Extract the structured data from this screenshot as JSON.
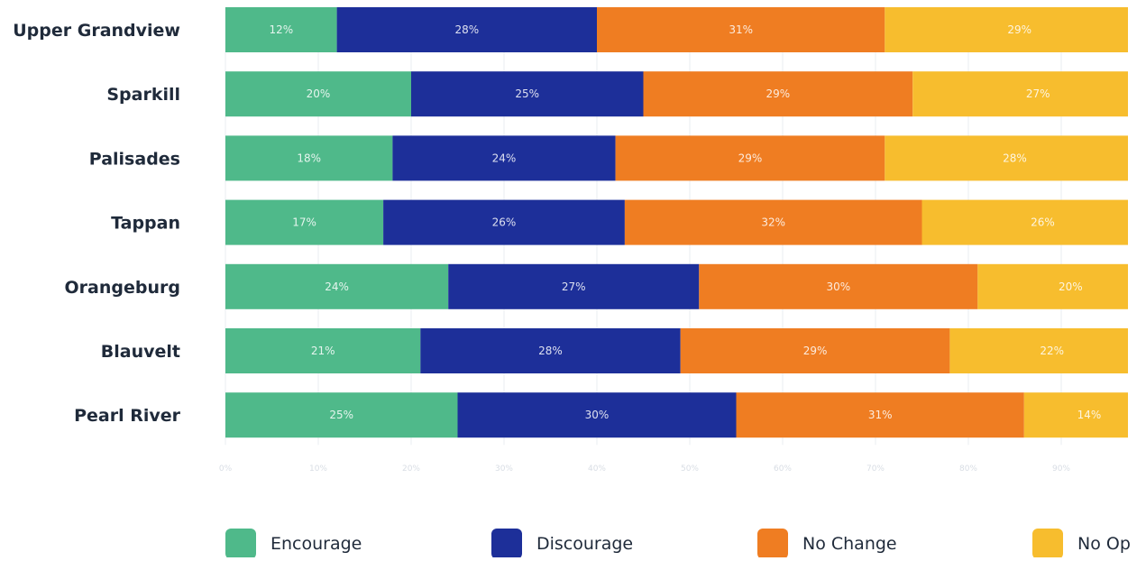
{
  "chart_data": {
    "type": "bar",
    "orientation": "horizontal",
    "stacked": true,
    "title": "",
    "xlabel": "",
    "ylabel": "",
    "xlim": [
      0,
      100
    ],
    "categories": [
      "Upper Grandview",
      "Sparkill",
      "Palisades",
      "Tappan",
      "Orangeburg",
      "Blauvelt",
      "Pearl River"
    ],
    "series": [
      {
        "name": "Encourage",
        "color": "#4fb98a",
        "values": [
          12,
          20,
          18,
          17,
          24,
          21,
          25
        ]
      },
      {
        "name": "Discourage",
        "color": "#1d2f99",
        "values": [
          28,
          25,
          24,
          26,
          27,
          28,
          30
        ]
      },
      {
        "name": "No Change",
        "color": "#ef7d22",
        "values": [
          31,
          29,
          29,
          32,
          30,
          29,
          31
        ]
      },
      {
        "name": "No Opinion",
        "color": "#f7bd2e",
        "values": [
          29,
          27,
          28,
          26,
          20,
          22,
          14
        ]
      }
    ],
    "bar_labels": [
      [
        "12%",
        "28%",
        "31%",
        "29%"
      ],
      [
        "20%",
        "25%",
        "29%",
        "27%"
      ],
      [
        "18%",
        "24%",
        "29%",
        "28%"
      ],
      [
        "17%",
        "26%",
        "32%",
        "26%"
      ],
      [
        "24%",
        "27%",
        "30%",
        "20%"
      ],
      [
        "21%",
        "28%",
        "29%",
        "22%"
      ],
      [
        "25%",
        "30%",
        "31%",
        "14%"
      ]
    ],
    "x_ticks": [
      "0%",
      "10%",
      "20%",
      "30%",
      "40%",
      "50%",
      "60%",
      "70%",
      "80%",
      "90%"
    ],
    "legend": {
      "position": "bottom",
      "entries": [
        "Encourage",
        "Discourage",
        "No Change",
        "No Op"
      ]
    },
    "grid": true
  }
}
